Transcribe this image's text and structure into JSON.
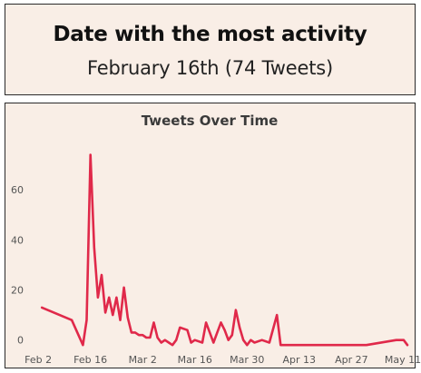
{
  "stat": {
    "title": "Date with the most activity",
    "value": "February 16th (74 Tweets)"
  },
  "colors": {
    "panel_bg": "#f9eee6",
    "line": "#e0294a"
  },
  "chart_data": {
    "type": "line",
    "title": "Tweets Over Time",
    "xlabel": "",
    "ylabel": "",
    "x_axis": "date",
    "xlim": [
      "2021-02-01",
      "2021-05-12"
    ],
    "ylim": [
      -3,
      80
    ],
    "yticks": [
      0,
      20,
      40,
      60
    ],
    "xticks": [
      {
        "date": "2021-02-02",
        "label": "Feb 2"
      },
      {
        "date": "2021-02-16",
        "label": "Feb 16"
      },
      {
        "date": "2021-03-02",
        "label": "Mar 2"
      },
      {
        "date": "2021-03-16",
        "label": "Mar 16"
      },
      {
        "date": "2021-03-30",
        "label": "Mar 30"
      },
      {
        "date": "2021-04-13",
        "label": "Apr 13"
      },
      {
        "date": "2021-04-27",
        "label": "Apr 27"
      },
      {
        "date": "2021-05-11",
        "label": "May 11"
      }
    ],
    "series": [
      {
        "points": [
          [
            "2021-02-03",
            13
          ],
          [
            "2021-02-11",
            8
          ],
          [
            "2021-02-14",
            -2
          ],
          [
            "2021-02-15",
            8
          ],
          [
            "2021-02-16",
            74
          ],
          [
            "2021-02-17",
            37
          ],
          [
            "2021-02-18",
            17
          ],
          [
            "2021-02-19",
            26
          ],
          [
            "2021-02-20",
            11
          ],
          [
            "2021-02-21",
            17
          ],
          [
            "2021-02-22",
            10
          ],
          [
            "2021-02-23",
            17
          ],
          [
            "2021-02-24",
            8
          ],
          [
            "2021-02-25",
            21
          ],
          [
            "2021-02-26",
            9
          ],
          [
            "2021-02-27",
            3
          ],
          [
            "2021-02-28",
            3
          ],
          [
            "2021-03-01",
            2
          ],
          [
            "2021-03-02",
            2
          ],
          [
            "2021-03-03",
            1
          ],
          [
            "2021-03-04",
            1
          ],
          [
            "2021-03-05",
            7
          ],
          [
            "2021-03-06",
            1
          ],
          [
            "2021-03-07",
            -1
          ],
          [
            "2021-03-08",
            0
          ],
          [
            "2021-03-09",
            -1
          ],
          [
            "2021-03-10",
            -2
          ],
          [
            "2021-03-11",
            0
          ],
          [
            "2021-03-12",
            5
          ],
          [
            "2021-03-14",
            4
          ],
          [
            "2021-03-15",
            -1
          ],
          [
            "2021-03-16",
            0
          ],
          [
            "2021-03-18",
            -1
          ],
          [
            "2021-03-19",
            7
          ],
          [
            "2021-03-20",
            3
          ],
          [
            "2021-03-21",
            -1
          ],
          [
            "2021-03-22",
            3
          ],
          [
            "2021-03-23",
            7
          ],
          [
            "2021-03-24",
            4
          ],
          [
            "2021-03-25",
            0
          ],
          [
            "2021-03-26",
            2
          ],
          [
            "2021-03-27",
            12
          ],
          [
            "2021-03-28",
            5
          ],
          [
            "2021-03-29",
            0
          ],
          [
            "2021-03-30",
            -2
          ],
          [
            "2021-03-31",
            0
          ],
          [
            "2021-04-01",
            -1
          ],
          [
            "2021-04-03",
            0
          ],
          [
            "2021-04-05",
            -1
          ],
          [
            "2021-04-07",
            10
          ],
          [
            "2021-04-08",
            -2
          ],
          [
            "2021-05-01",
            -2
          ],
          [
            "2021-05-09",
            0
          ],
          [
            "2021-05-11",
            0
          ],
          [
            "2021-05-12",
            -2
          ]
        ]
      }
    ]
  }
}
